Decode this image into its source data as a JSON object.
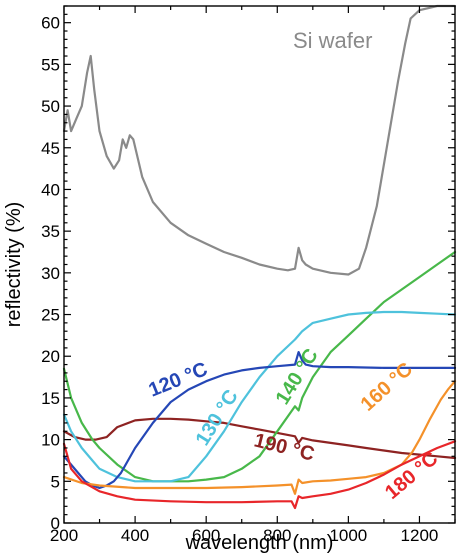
{
  "chart_data": {
    "type": "line",
    "xlabel": "wavelength (nm)",
    "ylabel": "reflectivity (%)",
    "xlim": [
      200,
      1300
    ],
    "ylim": [
      0,
      62
    ],
    "xticks": [
      200,
      400,
      600,
      800,
      1000,
      1200
    ],
    "yticks": [
      0,
      5,
      10,
      15,
      20,
      25,
      30,
      35,
      40,
      45,
      50,
      55,
      60
    ],
    "grid": false,
    "legend": "none (labels placed on curves)",
    "series": [
      {
        "name": "Si wafer",
        "color": "#8a8a8a",
        "x": [
          200,
          210,
          220,
          235,
          250,
          265,
          275,
          285,
          300,
          320,
          340,
          355,
          365,
          375,
          385,
          395,
          420,
          450,
          500,
          550,
          600,
          650,
          700,
          750,
          800,
          830,
          850,
          860,
          870,
          880,
          900,
          950,
          1000,
          1030,
          1050,
          1080,
          1100,
          1120,
          1140,
          1160,
          1175,
          1200,
          1250,
          1300
        ],
        "values": [
          47,
          49.5,
          47,
          48.5,
          50,
          54,
          56,
          52,
          47,
          44,
          42.5,
          43.5,
          46,
          45,
          46.5,
          46,
          41.5,
          38.5,
          36,
          34.5,
          33.5,
          32.5,
          31.8,
          31,
          30.5,
          30.3,
          30.5,
          33,
          31.5,
          31,
          30.5,
          30,
          29.8,
          30.5,
          33,
          38,
          43,
          48,
          53,
          57.5,
          60.5,
          61.5,
          62,
          62
        ]
      },
      {
        "name": "120 °C",
        "color": "#2547b6",
        "x": [
          200,
          220,
          240,
          260,
          280,
          300,
          320,
          340,
          360,
          380,
          400,
          450,
          500,
          550,
          600,
          650,
          700,
          750,
          800,
          850,
          860,
          870,
          880,
          900,
          950,
          1000,
          1100,
          1200,
          1300
        ],
        "values": [
          8,
          7,
          6,
          5,
          4.5,
          4.2,
          4.5,
          5,
          6,
          7.5,
          9,
          12,
          14.5,
          16,
          17,
          17.8,
          18.3,
          18.6,
          18.8,
          19,
          20.5,
          19.5,
          19,
          18.8,
          18.7,
          18.7,
          18.6,
          18.6,
          18.6
        ]
      },
      {
        "name": "130 °C",
        "color": "#4ec2dc",
        "x": [
          200,
          220,
          250,
          280,
          300,
          350,
          400,
          450,
          500,
          550,
          600,
          650,
          700,
          750,
          800,
          850,
          860,
          870,
          900,
          950,
          1000,
          1050,
          1100,
          1150,
          1200,
          1250,
          1300
        ],
        "values": [
          13,
          11,
          9,
          7.5,
          6.5,
          5.5,
          5,
          5,
          5,
          5.5,
          8,
          11,
          14.5,
          17.5,
          20,
          22,
          22.5,
          23,
          24,
          24.5,
          25,
          25.2,
          25.3,
          25.3,
          25.2,
          25.1,
          25
        ]
      },
      {
        "name": "140 °C",
        "color": "#48b84a",
        "x": [
          200,
          220,
          250,
          280,
          300,
          350,
          400,
          450,
          500,
          550,
          600,
          650,
          700,
          750,
          800,
          850,
          860,
          870,
          900,
          950,
          1000,
          1050,
          1100,
          1150,
          1200,
          1250,
          1300
        ],
        "values": [
          18.5,
          15,
          12,
          10,
          9,
          7,
          5.5,
          5,
          5,
          5,
          5.2,
          5.5,
          6.5,
          8,
          11,
          14,
          13.5,
          15,
          17.5,
          20.5,
          22.5,
          24.5,
          26.5,
          28,
          29.5,
          31,
          32.5
        ]
      },
      {
        "name": "160 °C",
        "color": "#f4912a",
        "x": [
          200,
          250,
          300,
          400,
          500,
          600,
          700,
          800,
          840,
          850,
          860,
          870,
          900,
          950,
          1000,
          1050,
          1100,
          1150,
          1180,
          1200,
          1230,
          1260,
          1280,
          1300
        ],
        "values": [
          5.5,
          4.8,
          4.5,
          4.2,
          4.2,
          4.2,
          4.3,
          4.5,
          4.6,
          3.5,
          5.2,
          4.8,
          5,
          5.1,
          5.3,
          5.5,
          6,
          7,
          8.5,
          10,
          12.5,
          14.8,
          16,
          17
        ]
      },
      {
        "name": "180 °C",
        "color": "#e8262a",
        "x": [
          200,
          220,
          250,
          300,
          350,
          400,
          500,
          600,
          700,
          800,
          840,
          850,
          860,
          870,
          900,
          950,
          1000,
          1050,
          1100,
          1150,
          1200,
          1250,
          1300
        ],
        "values": [
          9.5,
          6.5,
          5,
          3.8,
          3.2,
          2.8,
          2.6,
          2.5,
          2.5,
          2.6,
          2.6,
          1.8,
          3.2,
          3,
          3.2,
          3.5,
          4,
          4.8,
          5.8,
          7,
          8,
          9,
          9.8
        ]
      },
      {
        "name": "190 °C",
        "color": "#8e2322",
        "x": [
          200,
          230,
          260,
          290,
          320,
          350,
          400,
          450,
          500,
          550,
          600,
          650,
          700,
          750,
          800,
          850,
          860,
          870,
          900,
          950,
          1000,
          1050,
          1100,
          1150,
          1200,
          1250,
          1300
        ],
        "values": [
          11,
          10.3,
          10,
          10,
          10.3,
          11.5,
          12.3,
          12.5,
          12.5,
          12.4,
          12.2,
          12,
          11.6,
          11.2,
          10.8,
          10.4,
          9.6,
          10.2,
          9.9,
          9.6,
          9.3,
          9,
          8.7,
          8.4,
          8.2,
          8,
          7.8
        ]
      }
    ]
  }
}
